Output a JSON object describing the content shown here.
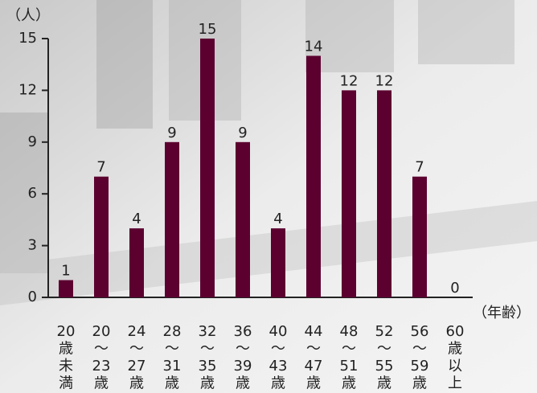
{
  "chart_data": {
    "type": "bar",
    "y_axis_label": "（人）",
    "x_axis_label": "（年齢）",
    "categories": [
      "20歳未満",
      "20〜23歳",
      "24〜27歳",
      "28〜31歳",
      "32〜35歳",
      "36〜39歳",
      "40〜43歳",
      "44〜47歳",
      "48〜51歳",
      "52〜55歳",
      "56〜59歳",
      "60歳以上"
    ],
    "values": [
      1,
      7,
      4,
      9,
      15,
      9,
      4,
      14,
      12,
      12,
      7,
      0
    ],
    "color": "#5c0030",
    "ylim": [
      0,
      15
    ],
    "yticks": [
      0,
      3,
      6,
      9,
      12,
      15
    ],
    "grid": false
  }
}
